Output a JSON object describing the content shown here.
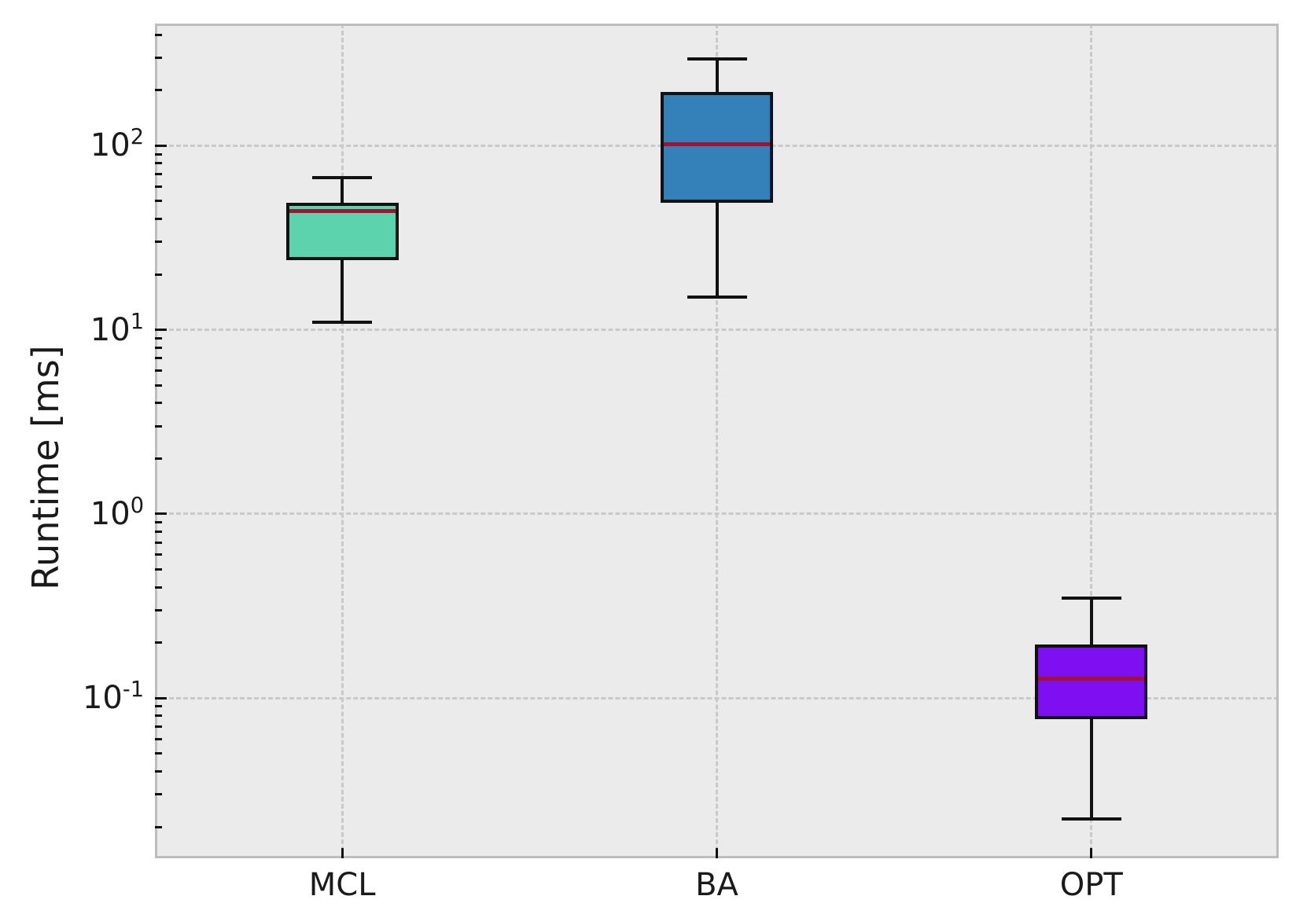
{
  "chart_data": {
    "type": "box",
    "title": "",
    "xlabel": "",
    "ylabel": "Runtime [ms]",
    "yscale": "log",
    "ylim": [
      0.0135,
      460
    ],
    "grid": "dashed major gridlines on log decades and vertical lines at category centers",
    "legend": "none",
    "categories": [
      "MCL",
      "BA",
      "OPT"
    ],
    "y_ticks": [
      {
        "value": 100,
        "mantissa": "10",
        "exponent": "2"
      },
      {
        "value": 10,
        "mantissa": "10",
        "exponent": "1"
      },
      {
        "value": 1,
        "mantissa": "10",
        "exponent": "0"
      },
      {
        "value": 0.1,
        "mantissa": "10",
        "exponent": "-1"
      }
    ],
    "series": [
      {
        "name": "MCL",
        "fill": "#5cd3ad",
        "whisker_low": 11,
        "q1": 24,
        "median": 44,
        "q3": 49,
        "whisker_high": 67
      },
      {
        "name": "BA",
        "fill": "#3381b8",
        "whisker_low": 15,
        "q1": 49,
        "median": 102,
        "q3": 195,
        "whisker_high": 295
      },
      {
        "name": "OPT",
        "fill": "#7d0ff0",
        "whisker_low": 0.022,
        "q1": 0.077,
        "median": 0.128,
        "q3": 0.195,
        "whisker_high": 0.35
      }
    ],
    "colors": {
      "median_line": "#a51131",
      "box_edge": "#111111",
      "whisker": "#111111",
      "plot_background": "#ebebeb",
      "figure_background": "#ffffff",
      "grid_line": "#c9c9c9",
      "spine": "#bdbdbd",
      "text": "#1a1a1a"
    }
  }
}
